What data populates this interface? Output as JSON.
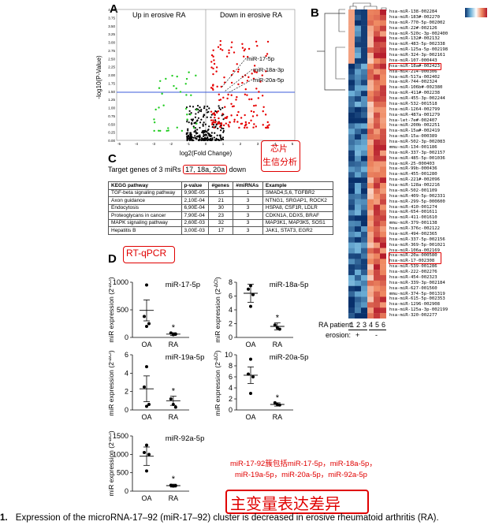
{
  "panelA": {
    "letter": "A",
    "left_label": "Up in erosive RA",
    "right_label": "Down in erosive RA",
    "ylabel": "-log10(P-Value)",
    "xlabel": "log2(Fold Change)",
    "y_ticks": [
      "4.00",
      "3.75",
      "3.50",
      "3.25",
      "3.00",
      "2.75",
      "2.50",
      "2.25",
      "2.00",
      "1.75",
      "1.50",
      "1.25",
      "1.00",
      "0.75",
      "0.50",
      "0.25",
      "0.00"
    ],
    "x_ticks": [
      "-5",
      "-4",
      "-3",
      "-2",
      "-1",
      "0",
      "1",
      "2",
      "3",
      "4",
      "5"
    ],
    "annotations": [
      "miR-17-5p",
      "miR-18a-3p",
      "miR-20a-5p"
    ],
    "callout": [
      "芯片",
      "生信分析"
    ]
  },
  "panelB": {
    "letter": "B",
    "mirnas": [
      "hsa-miR-138-002284",
      "hsa-miR-183#-002270",
      "hsa-miR-770-5p-002002",
      "hsa-miR-22#-002126",
      "hsa-miR-520c-3p-002400",
      "hsa-miR-132#-002132",
      "hsa-miR-483-5p-002338",
      "hsa-miR-125a-5p-002198",
      "hsa-miR-324-3p-002161",
      "hsa-miR-107-000443",
      "hsa-miR-18a#-002423",
      "hsa-miR-214-000306",
      "hsa-miR-517a-002402",
      "hsa-miR-744-002324",
      "hsa-miR-106b#-002380",
      "hsa-miR-411#-002238",
      "hsa-miR-455-3p-002244",
      "hsa-miR-532-001518",
      "hsa-miR-1264-002799",
      "hsa-miR-487a-001279",
      "hsa-let-7e#-002407",
      "hsa-miR-200b-002251",
      "hsa-miR-15a#-002419",
      "hsa-miR-15a-000389",
      "hsa-miR-502-3p-002083",
      "mmu-miR-134-001186",
      "hsa-miR-337-3p-002157",
      "hsa-miR-485-5p-001036",
      "hsa-miR-25-000403",
      "hsa-miR-99b-000436",
      "hsa-miR-455-001280",
      "hsa-miR-221#-002096",
      "hsa-miR-128a-002216",
      "hsa-miR-502-001109",
      "hsa-miR-409-5p-002331",
      "hsa-miR-299-5p-000600",
      "hsa-miR-410-001274",
      "hsa-miR-654-001611",
      "hsa-miR-411-001610",
      "mmu-miR-379-001138",
      "hsa-miR-376c-002122",
      "hsa-miR-494-002365",
      "hsa-miR-337-5p-002156",
      "hsa-miR-369-5p-001021",
      "hsa-miR-106a-002169",
      "hsa-miR-20a-000580",
      "hsa-miR-17-002308",
      "hsa-miR-539-001286",
      "hsa-miR-222-002276",
      "hsa-miR-454-002323",
      "hsa-miR-339-3p-002184",
      "hsa-miR-627-001560",
      "mmu-miR-374-5p-001319",
      "hsa-miR-615-5p-002353",
      "hsa-miR-1296-002908",
      "hsa-miR-125a-3p-002199",
      "hsa-miR-320-002277"
    ],
    "highlighted": [
      "hsa-miR-18a#-002423",
      "hsa-miR-20a-000580",
      "hsa-miR-17-002308"
    ],
    "patients_label": "RA patient:",
    "patients": [
      "1",
      "2",
      "3",
      "4",
      "5",
      "6"
    ],
    "erosion_label": "erosion:",
    "erosion_values": [
      "+",
      "-"
    ]
  },
  "panelC": {
    "letter": "C",
    "title_pre": "Target genes of 3 miRs",
    "title_mirs": "17, 18a, 20a",
    "title_post": "down",
    "callout": "芯片生信分析",
    "headers": [
      "KEGG pathway",
      "p-value",
      "#genes",
      "#miRNAs",
      "Example"
    ],
    "rows": [
      [
        "TGF-beta signaling pathway",
        "9,90E-05",
        "15",
        "1",
        "SMAD4,5,6, TGFBR2"
      ],
      [
        "Axon guidance",
        "2,10E-04",
        "21",
        "3",
        "NTNG1, SRGAP1, ROCK2"
      ],
      [
        "Endocytosis",
        "6,90E-04",
        "30",
        "3",
        "HSPA8, CSF1R, LDLR"
      ],
      [
        "Proteoglycans in cancer",
        "7,90E-04",
        "23",
        "3",
        "CDKN1A, DDX5, BRAF"
      ],
      [
        "MAPK signaling pathway",
        "2,60E-03",
        "32",
        "3",
        "MAP3K1, MAP3K5, SOS1"
      ],
      [
        "Hepatitis B",
        "3,00E-03",
        "17",
        "3",
        "JAK1, STAT3, EGR2"
      ]
    ]
  },
  "panelD": {
    "letter": "D",
    "method": "RT-qPCR",
    "ylabel": "miR expression (2^-ΔCt)",
    "ylabel_main": "miR expression (2",
    "ylabel_sup": "-ΔCt",
    "ylabel_end": ")",
    "groups": [
      "OA",
      "RA"
    ],
    "significance": "*",
    "plots": [
      {
        "name": "miR-17-5p",
        "yticks": [
          "1000",
          "500",
          "0"
        ],
        "ymax": 1000,
        "oa_mean": 490,
        "oa_sem": 190,
        "ra_mean": 60,
        "ra_sem": 25,
        "oa_points": [
          950,
          380,
          250,
          200
        ],
        "ra_points": [
          80,
          50,
          60
        ]
      },
      {
        "name": "miR-18a-5p",
        "yticks": [
          "8",
          "6",
          "4",
          "2",
          "0"
        ],
        "ymax": 8,
        "oa_mean": 6.4,
        "oa_sem": 1.3,
        "ra_mean": 1.6,
        "ra_sem": 0.5,
        "oa_points": [
          7.5,
          7.0,
          6.2,
          4.5
        ],
        "ra_points": [
          1.8,
          1.4,
          1.2
        ]
      },
      {
        "name": "miR-19a-5p",
        "yticks": [
          "6",
          "4",
          "2",
          "0"
        ],
        "ymax": 6,
        "oa_mean": 2.3,
        "oa_sem": 1.4,
        "ra_mean": 1.0,
        "ra_sem": 0.5,
        "oa_points": [
          4.7,
          2.5,
          0.6,
          0.4
        ],
        "ra_points": [
          1.2,
          0.6,
          0.3
        ]
      },
      {
        "name": "miR-20a-5p",
        "yticks": [
          "10",
          "8",
          "6",
          "4",
          "2",
          "0"
        ],
        "ymax": 10,
        "oa_mean": 6.3,
        "oa_sem": 1.5,
        "ra_mean": 1.0,
        "ra_sem": 0.3,
        "oa_points": [
          9.2,
          6.5,
          6.0,
          3.0
        ],
        "ra_points": [
          1.3,
          1.0,
          0.9
        ]
      },
      {
        "name": "miR-92a-5p",
        "yticks": [
          "1500",
          "1000",
          "500",
          "0"
        ],
        "ymax": 1500,
        "oa_mean": 950,
        "oa_sem": 250,
        "ra_mean": 150,
        "ra_sem": 40,
        "oa_points": [
          1250,
          1050,
          1000,
          550
        ],
        "ra_points": [
          160,
          140,
          150
        ]
      }
    ],
    "cluster_note_line1": "miR-17-92簇包括miR-17-5p，miR-18a-5p，",
    "cluster_note_line2": "miR-19a-5p，miR-20a-5p，miR-92a-5p",
    "big_note": "主变量表达差异"
  },
  "caption": {
    "number": "1.",
    "text": "Expression of the microRNA-17–92 (miR-17–92) cluster is decreased in erosive rheumatoid arthritis (RA)."
  },
  "colors": {
    "red": "#e00000",
    "heat_high": "#b2182b",
    "heat_low": "#08306b",
    "volcano_up": "#22cc22",
    "volcano_down": "#e60000",
    "threshold": "#3b5bdb"
  }
}
